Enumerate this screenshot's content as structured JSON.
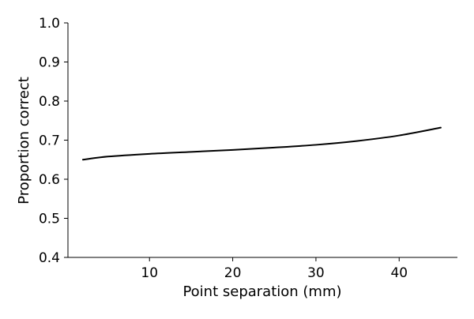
{
  "chart_data": {
    "type": "line",
    "title": "",
    "xlabel": "Point separation (mm)",
    "ylabel": "Proportion correct",
    "xlim": [
      0.2,
      47
    ],
    "ylim": [
      0.4,
      1.0
    ],
    "x_ticks": [
      10,
      20,
      30,
      40
    ],
    "x_tick_labels": [
      "10",
      "20",
      "30",
      "40"
    ],
    "y_ticks": [
      0.4,
      0.5,
      0.6,
      0.7,
      0.8,
      0.9,
      1.0
    ],
    "y_tick_labels": [
      "0.4",
      "0.5",
      "0.6",
      "0.7",
      "0.8",
      "0.9",
      "1.0"
    ],
    "grid": false,
    "spines": [
      "left",
      "bottom"
    ],
    "series": [
      {
        "color": "#000000",
        "x": [
          2,
          5,
          10,
          15,
          20,
          25,
          30,
          35,
          40,
          45
        ],
        "y": [
          0.65,
          0.658,
          0.665,
          0.67,
          0.675,
          0.681,
          0.688,
          0.698,
          0.712,
          0.732
        ]
      }
    ]
  }
}
